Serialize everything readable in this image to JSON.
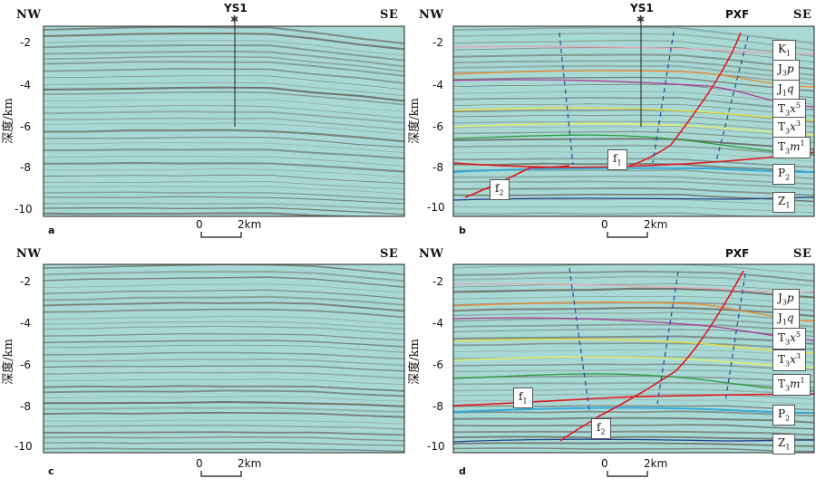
{
  "y_axis_label": "深度/km",
  "depth_ticks": [
    "-2",
    "-4",
    "-6",
    "-8",
    "-10"
  ],
  "scale_bar": {
    "start": "0",
    "end": "2km"
  },
  "colors": {
    "background": "#a9d9d4",
    "stripe": "#5e5a52",
    "fault_red": "#e0191f",
    "fault_blue_dash": "#2848a0"
  },
  "panels": {
    "a": {
      "letter": "a",
      "left": "NW",
      "right": "SE",
      "well": "YS1"
    },
    "b": {
      "letter": "b",
      "left": "NW",
      "right": "SE",
      "well": "YS1",
      "fault_name": "PXF",
      "horizons": [
        "K1",
        "J3p",
        "J1q",
        "T3x5",
        "T3x3",
        "T3m1",
        "P2",
        "Z1"
      ],
      "fault_boxes": [
        "f1",
        "f2"
      ]
    },
    "c": {
      "letter": "c",
      "left": "NW",
      "right": "SE"
    },
    "d": {
      "letter": "d",
      "left": "NW",
      "right": "SE",
      "fault_name": "PXF",
      "horizons": [
        "J3p",
        "J1q",
        "T3x5",
        "T3x3",
        "T3m1",
        "P2",
        "Z1"
      ],
      "fault_boxes": [
        "f1",
        "f2"
      ]
    }
  }
}
